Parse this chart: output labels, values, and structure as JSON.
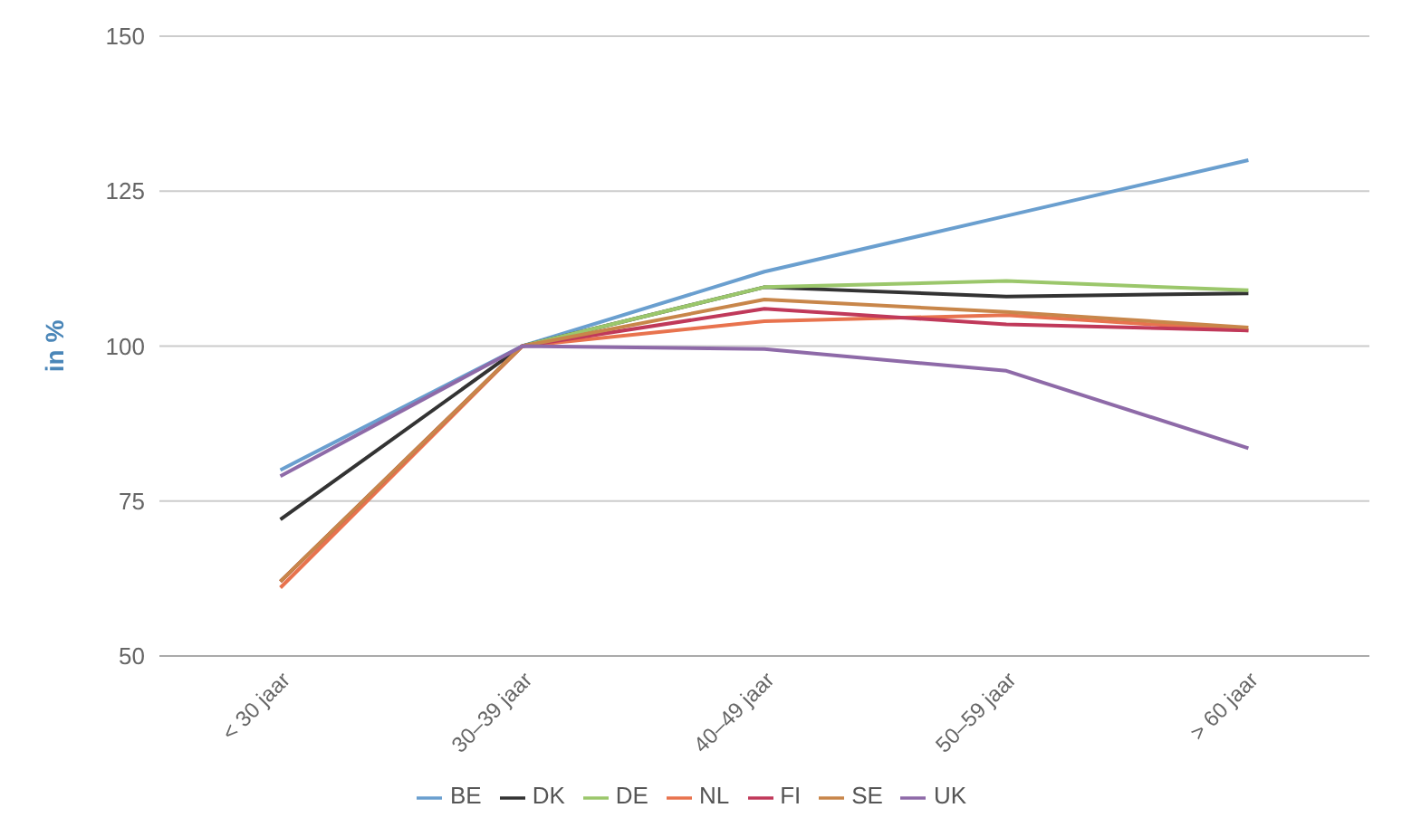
{
  "chart_data": {
    "type": "line",
    "ylabel": "in %",
    "categories": [
      "< 30 jaar",
      "30–39 jaar",
      "40–49 jaar",
      "50–59 jaar",
      "> 60 jaar"
    ],
    "series": [
      {
        "name": "BE",
        "color": "#6a9fcf",
        "values": [
          80,
          100,
          112,
          121,
          130
        ]
      },
      {
        "name": "DK",
        "color": "#333333",
        "values": [
          72,
          100,
          109.5,
          108,
          108.5
        ]
      },
      {
        "name": "DE",
        "color": "#9bc76b",
        "values": [
          62,
          100,
          109.5,
          110.5,
          109
        ]
      },
      {
        "name": "NL",
        "color": "#e8734e",
        "values": [
          61,
          100,
          104,
          105,
          102.5
        ]
      },
      {
        "name": "FI",
        "color": "#c0395a",
        "values": [
          62,
          100,
          106,
          103.5,
          102.5
        ]
      },
      {
        "name": "SE",
        "color": "#c8864a",
        "values": [
          62,
          100,
          107.5,
          105.5,
          103
        ]
      },
      {
        "name": "UK",
        "color": "#8e6aa8",
        "values": [
          79,
          100,
          99.5,
          96,
          83.5
        ]
      }
    ],
    "ylim": [
      50,
      150
    ],
    "yticks": [
      50,
      75,
      100,
      125,
      150
    ],
    "grid": "y",
    "legend": "bottom",
    "marker": "none",
    "line_style": "solid"
  }
}
